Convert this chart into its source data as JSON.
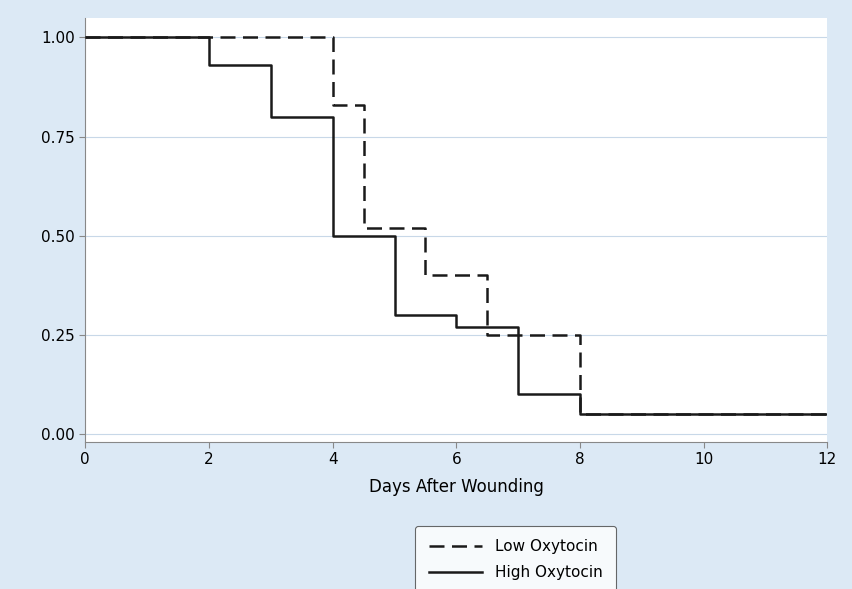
{
  "xlabel": "Days After Wounding",
  "ylabel": "",
  "xlim": [
    0,
    12
  ],
  "ylim": [
    -0.02,
    1.05
  ],
  "xticks": [
    0,
    2,
    4,
    6,
    8,
    10,
    12
  ],
  "yticks": [
    0.0,
    0.25,
    0.5,
    0.75,
    1.0
  ],
  "ytick_labels": [
    "0.00",
    "0.25",
    "0.50",
    "0.75",
    "1.00"
  ],
  "background_color": "#dce9f5",
  "plot_background_color": "#ffffff",
  "high_oxytocin": {
    "label": "High Oxytocin",
    "color": "#1a1a1a",
    "linestyle": "solid",
    "linewidth": 1.8,
    "x": [
      0,
      2,
      2,
      3,
      3,
      4,
      4,
      5,
      5,
      6,
      6,
      7,
      7,
      8,
      8,
      12
    ],
    "y": [
      1.0,
      1.0,
      0.93,
      0.93,
      0.8,
      0.8,
      0.5,
      0.5,
      0.3,
      0.3,
      0.27,
      0.27,
      0.1,
      0.1,
      0.05,
      0.05
    ]
  },
  "low_oxytocin": {
    "label": "Low Oxytocin",
    "color": "#1a1a1a",
    "linestyle": "dashed",
    "linewidth": 1.8,
    "x": [
      0,
      4,
      4,
      4.5,
      4.5,
      5.5,
      5.5,
      6.5,
      6.5,
      8,
      8,
      12
    ],
    "y": [
      1.0,
      1.0,
      0.83,
      0.83,
      0.52,
      0.52,
      0.4,
      0.4,
      0.25,
      0.25,
      0.05,
      0.05
    ]
  },
  "grid_color": "#c8d8e8",
  "grid_linewidth": 0.8,
  "spine_color": "#888888",
  "tick_fontsize": 11,
  "xlabel_fontsize": 12,
  "legend_fontsize": 11,
  "legend_handlelength": 3.5,
  "dashes": [
    6,
    3
  ]
}
